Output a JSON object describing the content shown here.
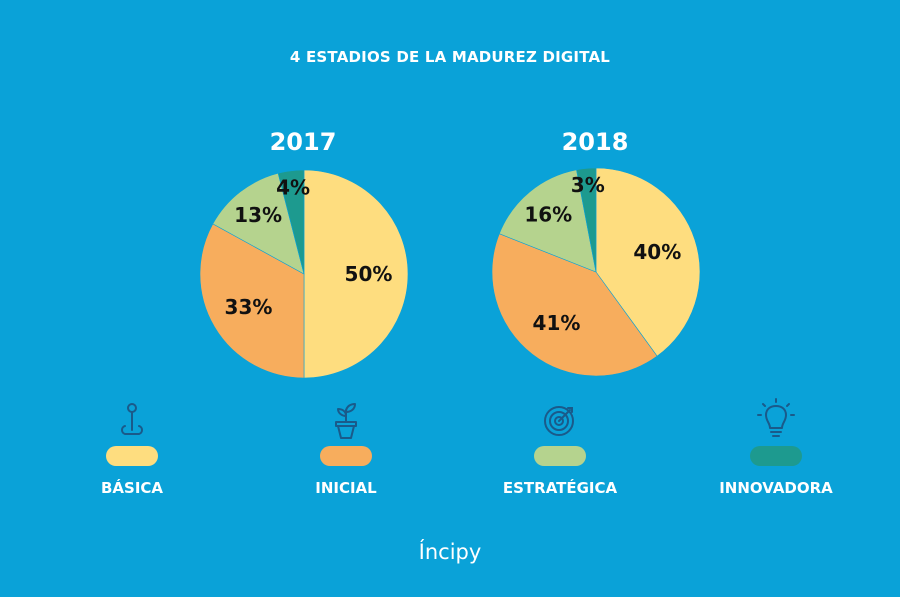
{
  "title": "4 ESTADIOS DE LA MADUREZ DIGITAL",
  "brand": "Íncipy",
  "colors": {
    "background": "#0aa2d8",
    "basica": "#fedd7f",
    "inicial": "#f7ad5d",
    "estrategica": "#b5d38e",
    "innovadora": "#1d9a8f"
  },
  "legend": [
    {
      "label": "BÁSICA",
      "icon": "map-pin-icon",
      "color": "#fedd7f"
    },
    {
      "label": "INICIAL",
      "icon": "plant-pot-icon",
      "color": "#f7ad5d"
    },
    {
      "label": "ESTRATÉGICA",
      "icon": "target-icon",
      "color": "#b5d38e"
    },
    {
      "label": "INNOVADORA",
      "icon": "lightbulb-icon",
      "color": "#1d9a8f"
    }
  ],
  "chart_data": [
    {
      "type": "pie",
      "title": "2017",
      "categories": [
        "BÁSICA",
        "INICIAL",
        "ESTRATÉGICA",
        "INNOVADORA"
      ],
      "values": [
        50,
        33,
        13,
        4
      ],
      "labels": [
        "50%",
        "33%",
        "13%",
        "4%"
      ],
      "colors": [
        "#fedd7f",
        "#f7ad5d",
        "#b5d38e",
        "#1d9a8f"
      ]
    },
    {
      "type": "pie",
      "title": "2018",
      "categories": [
        "BÁSICA",
        "INICIAL",
        "ESTRATÉGICA",
        "INNOVADORA"
      ],
      "values": [
        40,
        41,
        16,
        3
      ],
      "labels": [
        "40%",
        "41%",
        "16%",
        "3%"
      ],
      "colors": [
        "#fedd7f",
        "#f7ad5d",
        "#b5d38e",
        "#1d9a8f"
      ]
    }
  ]
}
